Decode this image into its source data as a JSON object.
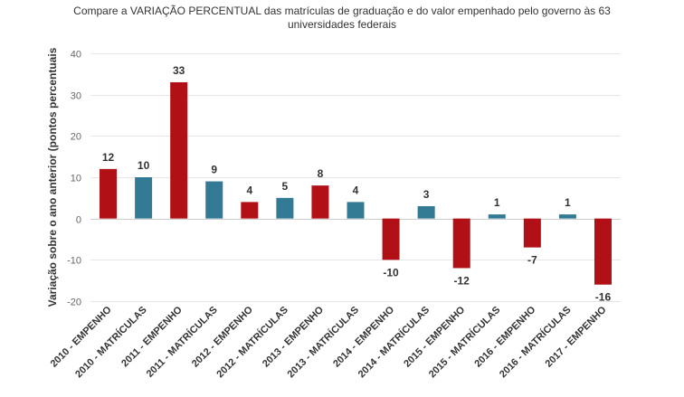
{
  "chart_data": {
    "type": "bar",
    "title": "Compare a VARIAÇÃO PERCENTUAL das matrículas de graduação e do valor empenhado pelo governo às 63 universidades federais",
    "title_lines": [
      "Compare a VARIAÇÃO PERCENTUAL das matrículas de graduação e do valor empenhado pelo governo às 63",
      "universidades federais"
    ],
    "ylabel": "Variação sobre o ano anterior (pontos percentuais",
    "xlabel": "",
    "ylim": [
      -20,
      40
    ],
    "yticks": [
      -20,
      -10,
      0,
      10,
      20,
      30,
      40
    ],
    "grid": true,
    "legend": "none",
    "categories": [
      "2010 - EMPENHO",
      "2010 - MATRÍCULAS",
      "2011 - EMPENHO",
      "2011 - MATRÍCULAS",
      "2012 - EMPENHO",
      "2012 - MATRÍCULAS",
      "2013 - EMPENHO",
      "2013 - MATRÍCULAS",
      "2014 - EMPENHO",
      "2014 - MATRÍCULAS",
      "2015 - EMPENHO",
      "2015 - MATRÍCULAS",
      "2016 - EMPENHO",
      "2016 - MATRÍCULAS",
      "2017 - EMPENHO"
    ],
    "values": [
      12,
      10,
      33,
      9,
      4,
      5,
      8,
      4,
      -10,
      3,
      -12,
      1,
      -7,
      1,
      -16
    ],
    "data_labels": [
      "12",
      "10",
      "33",
      "9",
      "4",
      "5",
      "8",
      "4",
      "-10",
      "3",
      "-12",
      "1",
      "-7",
      "1",
      "-16"
    ],
    "colors": {
      "EMPENHO": "#b11116",
      "MATRÍCULAS": "#337a94"
    },
    "bar_colors": [
      "#b11116",
      "#337a94",
      "#b11116",
      "#337a94",
      "#b11116",
      "#337a94",
      "#b11116",
      "#337a94",
      "#b11116",
      "#337a94",
      "#b11116",
      "#337a94",
      "#b11116",
      "#337a94",
      "#b11116"
    ]
  }
}
